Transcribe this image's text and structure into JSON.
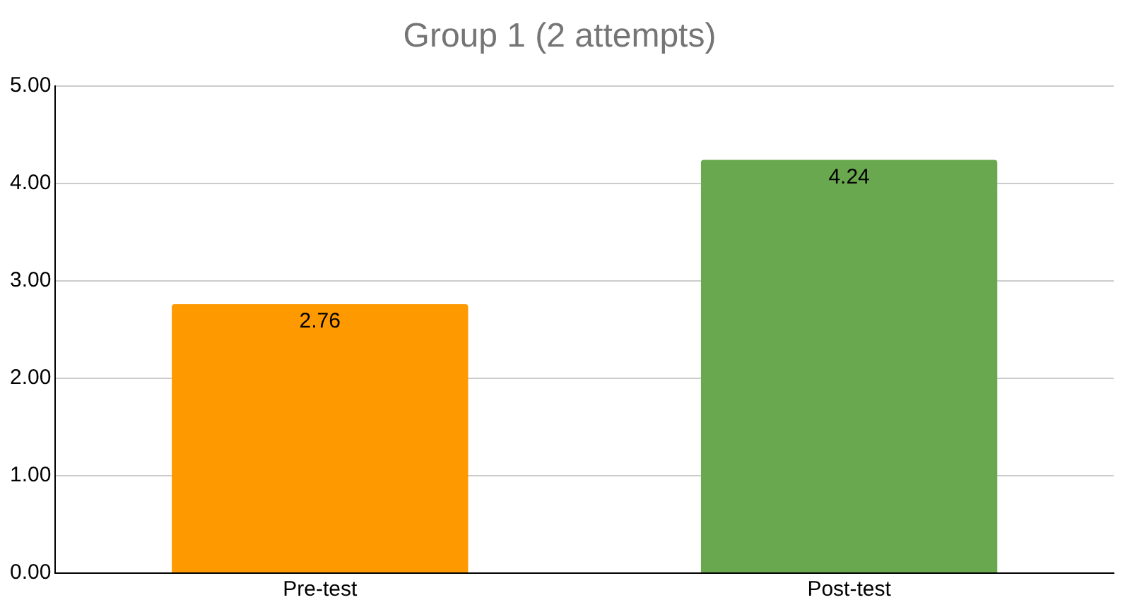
{
  "chart_data": {
    "type": "bar",
    "title": "Group 1 (2 attempts)",
    "categories": [
      "Pre-test",
      "Post-test"
    ],
    "values": [
      2.76,
      4.24
    ],
    "colors": [
      "#ff9900",
      "#6aa84f"
    ],
    "ylim": [
      0,
      5
    ],
    "yticks": [
      {
        "value": 0,
        "label": "0.00"
      },
      {
        "value": 1,
        "label": "1.00"
      },
      {
        "value": 2,
        "label": "2.00"
      },
      {
        "value": 3,
        "label": "3.00"
      },
      {
        "value": 4,
        "label": "4.00"
      },
      {
        "value": 5,
        "label": "5.00"
      }
    ],
    "grid": "y",
    "legend": false,
    "data_labels": true
  }
}
